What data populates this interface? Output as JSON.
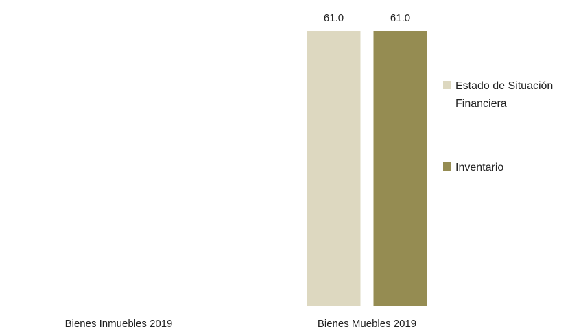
{
  "chart_data": {
    "type": "bar",
    "title": "",
    "xlabel": "",
    "ylabel": "",
    "categories": [
      "Bienes Inmuebles 2019",
      "Bienes Muebles 2019"
    ],
    "series": [
      {
        "name": "Estado de Situación Financiera",
        "values": [
          null,
          61.0
        ],
        "labels": [
          null,
          "61.0"
        ],
        "color": "#ddd8c0"
      },
      {
        "name": "Inventario",
        "values": [
          null,
          61.0
        ],
        "labels": [
          null,
          "61.0"
        ],
        "color": "#958c52"
      }
    ],
    "ylim": [
      0,
      61.0
    ],
    "grid": false,
    "legend": {
      "position": "right",
      "entries": [
        {
          "lines": [
            "Estado de Situación",
            "Financiera"
          ],
          "color": "#ddd8c0"
        },
        {
          "lines": [
            "Inventario"
          ],
          "color": "#958c52"
        }
      ]
    },
    "axis_color": "#d9d9d9"
  }
}
